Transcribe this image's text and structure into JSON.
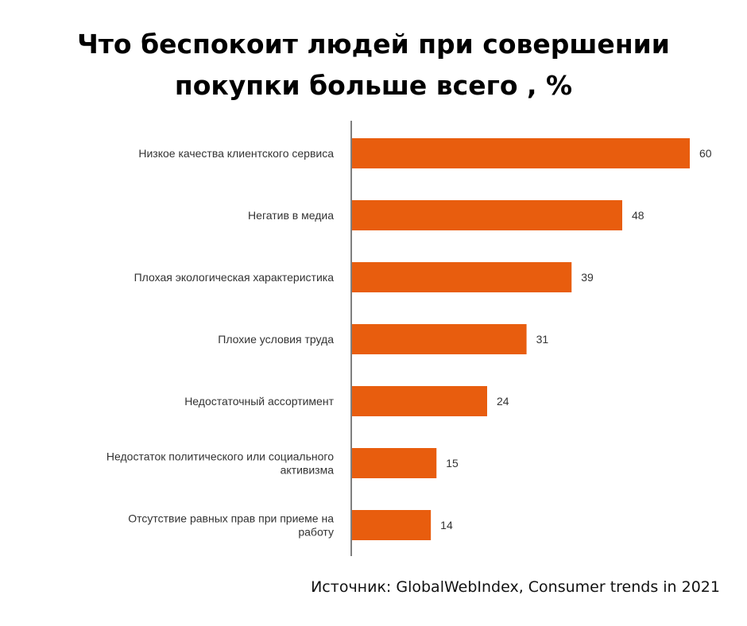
{
  "title_lines": [
    "Что беспокоит людей при совершении",
    "покупки больше всего , %"
  ],
  "source": "Источник: GlobalWebIndex, Consumer trends in 2021",
  "colors": {
    "bar": "#E85D0E",
    "axis": "#555555",
    "text": "#333333"
  },
  "chart_data": {
    "type": "bar",
    "orientation": "horizontal",
    "title": "Что беспокоит людей при совершении покупки больше всего , %",
    "categories": [
      [
        "Низкое качества клиентского сервиса"
      ],
      [
        "Негатив в медиа"
      ],
      [
        "Плохая экологическая характеристика"
      ],
      [
        "Плохие условия труда"
      ],
      [
        "Недостаточный ассортимент"
      ],
      [
        "Недостаток политического или социального",
        "активизма"
      ],
      [
        "Отсутствие равных прав при приеме на",
        "работу"
      ]
    ],
    "values": [
      60,
      48,
      39,
      31,
      24,
      15,
      14
    ],
    "xlim": [
      0,
      60
    ],
    "grid": false,
    "data_labels": true
  }
}
